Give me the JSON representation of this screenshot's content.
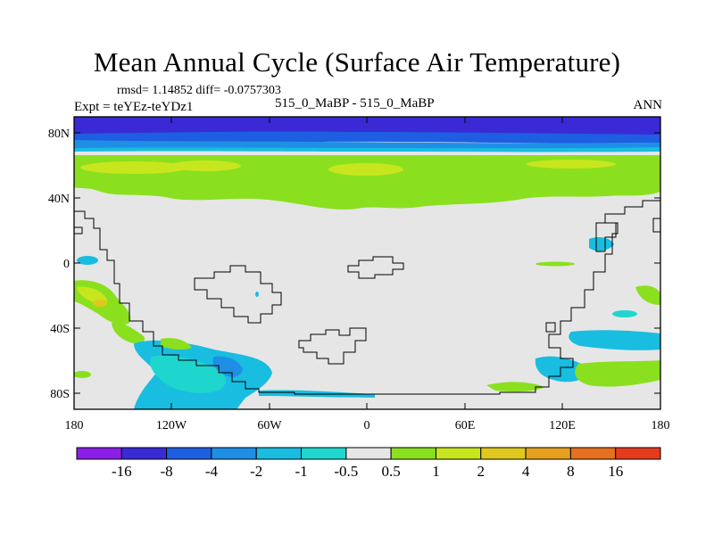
{
  "title": "Mean Annual Cycle (Surface Air Temperature)",
  "stats_line": "rmsd= 1.14852 diff= -0.0757303",
  "experiment_label": "Expt = teYEz-teYDz1",
  "comparison_label": "515_0_MaBP - 515_0_MaBP",
  "season_label": "ANN",
  "axes": {
    "lat_ticks": [
      "80N",
      "40N",
      "0",
      "40S",
      "80S"
    ],
    "lon_ticks": [
      "180",
      "120W",
      "60W",
      "0",
      "60E",
      "120E",
      "180"
    ]
  },
  "colorbar": {
    "labels": [
      "-16",
      "-8",
      "-4",
      "-2",
      "-1",
      "-0.5",
      "0.5",
      "1",
      "2",
      "4",
      "8",
      "16"
    ],
    "colors": [
      "#8a1ee6",
      "#3a2ad6",
      "#1e5ee0",
      "#1f8fe6",
      "#18bde0",
      "#1fd6cf",
      "#e6e6e6",
      "#8ae01e",
      "#c8e61e",
      "#e0c81e",
      "#e6a01e",
      "#e6701e",
      "#e63a1e"
    ]
  },
  "palette": {
    "background": "#e6e6e6",
    "deep_blue": "#3a2ad6",
    "blue": "#1e5ee0",
    "light_blue": "#1f8fe6",
    "cyan": "#18bde0",
    "aqua": "#1fd6cf",
    "green": "#8ae01e",
    "yellow_green": "#c8e61e",
    "yellow": "#e0c81e"
  }
}
